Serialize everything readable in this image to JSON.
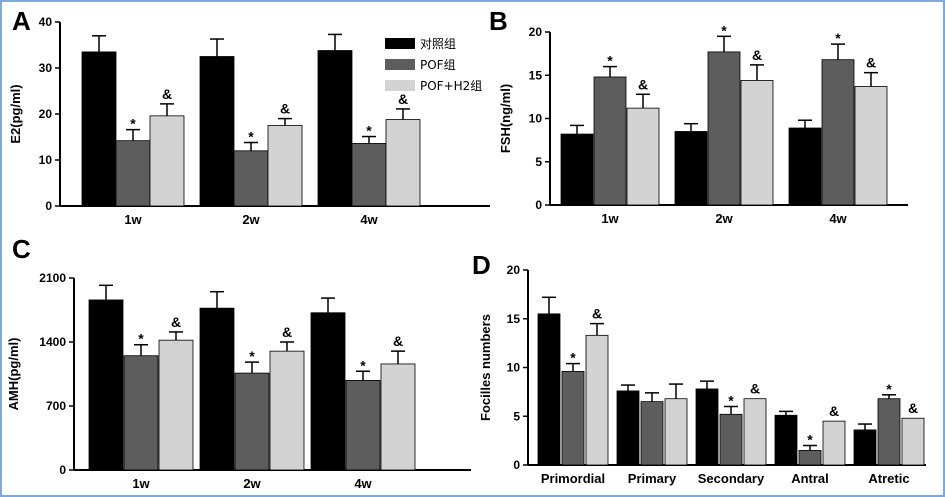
{
  "colors": {
    "control": "#000000",
    "pof": "#5d5d5d",
    "pof_h2": "#d3d3d3",
    "frame": "#7fa9d8"
  },
  "legend": [
    "对照组",
    "POF组",
    "POF+H2组"
  ],
  "chart_data": [
    {
      "panel": "A",
      "type": "bar",
      "ylabel": "E2(pg/ml)",
      "ylim": [
        0,
        40
      ],
      "yticks": [
        0,
        10,
        20,
        30,
        40
      ],
      "categories": [
        "1w",
        "2w",
        "4w"
      ],
      "series": [
        {
          "name": "对照组",
          "values": [
            33.5,
            32.5,
            33.8
          ],
          "errors": [
            3.5,
            3.8,
            3.5
          ],
          "marks": [
            "",
            "",
            ""
          ]
        },
        {
          "name": "POF组",
          "values": [
            14.2,
            12.0,
            13.6
          ],
          "errors": [
            2.4,
            1.8,
            1.5
          ],
          "marks": [
            "*",
            "*",
            "*"
          ]
        },
        {
          "name": "POF+H2组",
          "values": [
            19.6,
            17.5,
            18.8
          ],
          "errors": [
            2.6,
            1.5,
            2.3
          ],
          "marks": [
            "&",
            "&",
            "&"
          ]
        }
      ]
    },
    {
      "panel": "B",
      "type": "bar",
      "ylabel": "FSH(ng/ml)",
      "ylim": [
        0,
        20
      ],
      "yticks": [
        0,
        5,
        10,
        15,
        20
      ],
      "categories": [
        "1w",
        "2w",
        "4w"
      ],
      "series": [
        {
          "name": "对照组",
          "values": [
            8.2,
            8.5,
            8.9
          ],
          "errors": [
            1.0,
            0.9,
            0.9
          ],
          "marks": [
            "",
            "",
            ""
          ]
        },
        {
          "name": "POF组",
          "values": [
            14.8,
            17.7,
            16.8
          ],
          "errors": [
            1.2,
            1.8,
            1.8
          ],
          "marks": [
            "*",
            "*",
            "*"
          ]
        },
        {
          "name": "POF+H2组",
          "values": [
            11.2,
            14.4,
            13.7
          ],
          "errors": [
            1.6,
            1.8,
            1.6
          ],
          "marks": [
            "&",
            "&",
            "&"
          ]
        }
      ]
    },
    {
      "panel": "C",
      "type": "bar",
      "ylabel": "AMH(pg/ml)",
      "ylim": [
        0,
        2100
      ],
      "yticks": [
        0,
        700,
        1400,
        2100
      ],
      "categories": [
        "1w",
        "2w",
        "4w"
      ],
      "series": [
        {
          "name": "对照组",
          "values": [
            1860,
            1770,
            1720
          ],
          "errors": [
            160,
            180,
            160
          ],
          "marks": [
            "",
            "",
            ""
          ]
        },
        {
          "name": "POF组",
          "values": [
            1250,
            1060,
            980
          ],
          "errors": [
            120,
            120,
            100
          ],
          "marks": [
            "*",
            "*",
            "*"
          ]
        },
        {
          "name": "POF+H2组",
          "values": [
            1420,
            1300,
            1160
          ],
          "errors": [
            90,
            100,
            140
          ],
          "marks": [
            "&",
            "&",
            "&"
          ]
        }
      ]
    },
    {
      "panel": "D",
      "type": "bar",
      "ylabel": "Focilles numbers",
      "ylim": [
        0,
        20
      ],
      "yticks": [
        0,
        5,
        10,
        15,
        20
      ],
      "categories": [
        "Primordial",
        "Primary",
        "Secondary",
        "Antral",
        "Atretic"
      ],
      "series": [
        {
          "name": "对照组",
          "values": [
            15.5,
            7.6,
            7.8,
            5.1,
            3.6
          ],
          "errors": [
            1.7,
            0.6,
            0.8,
            0.4,
            0.6
          ],
          "marks": [
            "",
            "",
            "",
            "",
            ""
          ]
        },
        {
          "name": "POF组",
          "values": [
            9.6,
            6.5,
            5.2,
            1.5,
            6.8
          ],
          "errors": [
            0.8,
            0.9,
            0.8,
            0.5,
            0.4
          ],
          "marks": [
            "*",
            "",
            "*",
            "*",
            "*"
          ]
        },
        {
          "name": "POF+H2组",
          "values": [
            13.3,
            6.8,
            6.8,
            4.5,
            4.8
          ],
          "errors": [
            1.2,
            1.5,
            0.0,
            0.0,
            0.0
          ],
          "marks": [
            "&",
            "",
            "&",
            "&",
            "&"
          ]
        }
      ]
    }
  ]
}
